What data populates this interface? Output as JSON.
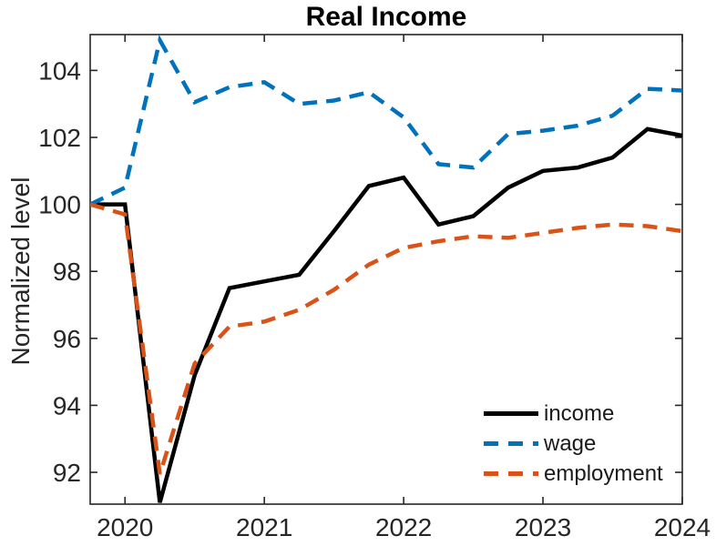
{
  "figure": {
    "title": "Real Income",
    "y_axis_label": "Normalized level"
  },
  "chart_data": {
    "type": "line",
    "title": "Real Income",
    "xlabel": "",
    "ylabel": "Normalized level",
    "xlim": [
      2019.75,
      2024
    ],
    "ylim": [
      91.05,
      105.07
    ],
    "x_ticks": [
      2020,
      2021,
      2022,
      2023,
      2024
    ],
    "x_tick_labels": [
      "2020",
      "2021",
      "2022",
      "2023",
      "2024"
    ],
    "y_ticks": [
      92,
      94,
      96,
      98,
      100,
      102,
      104
    ],
    "y_tick_labels": [
      "92",
      "94",
      "96",
      "98",
      "100",
      "102",
      "104"
    ],
    "grid": false,
    "legend_position": "lower right",
    "axis_color": "#262626",
    "background_color": "#ffffff",
    "x": [
      2019.75,
      2020,
      2020.25,
      2020.5,
      2020.75,
      2021,
      2021.25,
      2021.5,
      2021.75,
      2022,
      2022.25,
      2022.5,
      2022.75,
      2023,
      2023.25,
      2023.5,
      2023.75,
      2024
    ],
    "series": [
      {
        "name": "income",
        "color": "#000000",
        "style": "solid",
        "values": [
          100,
          100,
          91.1,
          94.9,
          97.5,
          97.7,
          97.9,
          99.2,
          100.55,
          100.8,
          99.4,
          99.65,
          100.5,
          101.0,
          101.1,
          101.4,
          102.25,
          102.05
        ]
      },
      {
        "name": "wage",
        "color": "#0072BD",
        "style": "dashed",
        "values": [
          100,
          100.5,
          104.9,
          103.05,
          103.5,
          103.65,
          103.0,
          103.1,
          103.35,
          102.6,
          101.2,
          101.1,
          102.1,
          102.2,
          102.35,
          102.65,
          103.45,
          103.4
        ]
      },
      {
        "name": "employment",
        "color": "#D95319",
        "style": "dashed",
        "values": [
          100,
          99.7,
          91.95,
          95.25,
          96.35,
          96.5,
          96.85,
          97.45,
          98.2,
          98.7,
          98.9,
          99.05,
          99.0,
          99.15,
          99.3,
          99.4,
          99.35,
          99.2
        ]
      }
    ]
  }
}
